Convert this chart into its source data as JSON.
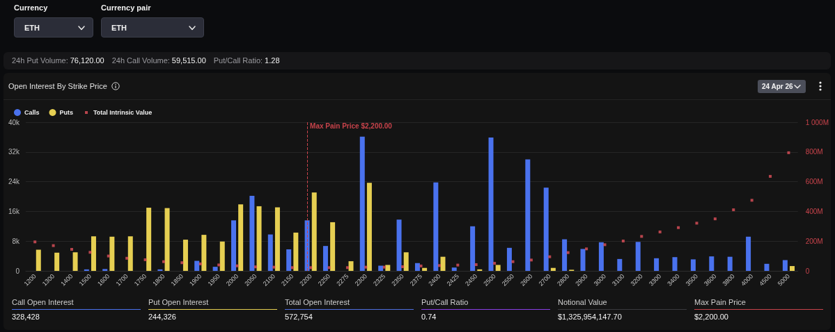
{
  "chart_data": {
    "type": "bar",
    "title": "Open Interest By Strike Price",
    "categories": [
      "1200",
      "1300",
      "1400",
      "1500",
      "1600",
      "1700",
      "1750",
      "1800",
      "1850",
      "1900",
      "1950",
      "2000",
      "2050",
      "2100",
      "2150",
      "2200",
      "2250",
      "2275",
      "2300",
      "2325",
      "2350",
      "2375",
      "2400",
      "2425",
      "2450",
      "2500",
      "2550",
      "2600",
      "2700",
      "2800",
      "2900",
      "3000",
      "3100",
      "3200",
      "3300",
      "3400",
      "3500",
      "3600",
      "3800",
      "4000",
      "4500",
      "5000"
    ],
    "series": [
      {
        "name": "Calls",
        "color": "#4a72ee",
        "values": [
          null,
          null,
          null,
          400,
          500,
          null,
          null,
          400,
          null,
          2700,
          1100,
          13600,
          20200,
          9800,
          5800,
          13600,
          6700,
          null,
          36100,
          1400,
          13800,
          2100,
          23800,
          900,
          12000,
          35900,
          6200,
          30000,
          22400,
          8500,
          5900,
          7700,
          3200,
          7800,
          3400,
          3700,
          3100,
          3900,
          3800,
          9200,
          1900,
          2900
        ]
      },
      {
        "name": "Puts",
        "color": "#e6cf52",
        "values": [
          5700,
          4900,
          5000,
          9300,
          9200,
          9300,
          17000,
          16900,
          8400,
          9700,
          7900,
          17900,
          17400,
          17100,
          10300,
          21100,
          13100,
          2600,
          23700,
          1600,
          5000,
          800,
          3800,
          null,
          400,
          1600,
          null,
          null,
          800,
          300,
          null,
          null,
          null,
          null,
          null,
          null,
          null,
          null,
          null,
          null,
          null,
          1300
        ]
      },
      {
        "name": "Total Intrinsic Value",
        "type": "scatter",
        "axis": "y2",
        "color": "#e0505a",
        "values": [
          195000000,
          170000000,
          145000000,
          125000000,
          100000000,
          85000000,
          75000000,
          62000000,
          55000000,
          47000000,
          40000000,
          34000000,
          27000000,
          25000000,
          22000000,
          22000000,
          22000000,
          22000000,
          25000000,
          25000000,
          28000000,
          33000000,
          36000000,
          39000000,
          42000000,
          51000000,
          62000000,
          73000000,
          95000000,
          123000000,
          148000000,
          176000000,
          201000000,
          232000000,
          262000000,
          291000000,
          321000000,
          350000000,
          411000000,
          475000000,
          636000000,
          795000000
        ]
      }
    ],
    "ylim": [
      0,
      40000
    ],
    "yticks": [
      0,
      {
        "value": 8000,
        "label": "8k"
      },
      {
        "value": 16000,
        "label": "16k"
      },
      {
        "value": 24000,
        "label": "24k"
      },
      {
        "value": 32000,
        "label": "32k"
      },
      {
        "value": 40000,
        "label": "40k"
      }
    ],
    "y2lim": [
      0,
      1000000000
    ],
    "y2ticks": [
      0,
      {
        "value": 200000000,
        "label": "200M"
      },
      {
        "value": 400000000,
        "label": "400M"
      },
      {
        "value": 600000000,
        "label": "600M"
      },
      {
        "value": 800000000,
        "label": "800M"
      },
      {
        "value": 1000000000,
        "label": "1 000M"
      }
    ],
    "ref_lines": [
      {
        "axis": "x",
        "value": "2200",
        "label": "Max Pain Price $2,200.00",
        "color": "#c8434b",
        "line_style": "dashed"
      }
    ],
    "grid": "y",
    "legend": "top left",
    "marker": "square",
    "annotations": [
      "Currency",
      "ETH",
      "Currency pair",
      "ETH",
      "24h Put Volume:",
      "76,120.00",
      "24h Call Volume:",
      "59,515.00",
      "Put/Call Ratio:",
      "1.28",
      "24 Apr 26",
      "Call Open Interest",
      "328,428",
      "Put Open Interest",
      "244,326",
      "Total Open Interest",
      "572,754",
      "Put/Call Ratio",
      "0.74",
      "Notional Value",
      "$1,325,954,147.70",
      "Max Pain Price",
      "$2,200.00"
    ]
  }
}
